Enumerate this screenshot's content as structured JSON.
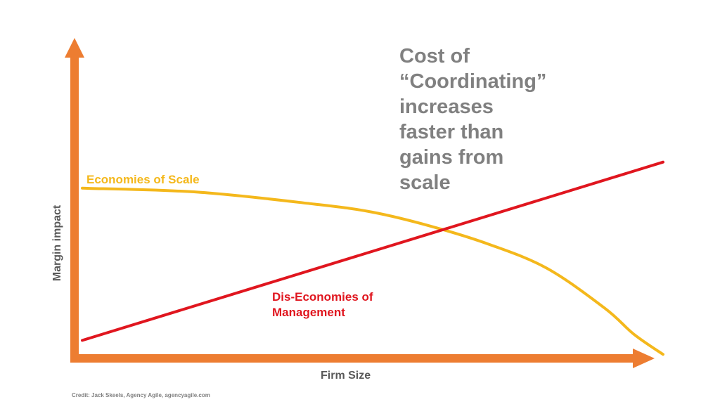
{
  "chart_data": {
    "type": "line",
    "xlabel": "Firm Size",
    "ylabel": "Margin impact",
    "xlim": [
      0,
      100
    ],
    "ylim": [
      0,
      100
    ],
    "grid": false,
    "annotation": [
      "Cost of",
      "“Coordinating”",
      "increases",
      "faster than",
      "gains from",
      "scale"
    ],
    "series": [
      {
        "name": "Economies of Scale",
        "color": "#f4b81c",
        "x": [
          0,
          20,
          40,
          50,
          60,
          70,
          80,
          90,
          95,
          100
        ],
        "values": [
          85,
          83,
          77,
          73,
          66,
          57,
          45,
          25,
          12,
          2
        ]
      },
      {
        "name": "Dis-Economies of Management",
        "label_lines": [
          "Dis-Economies of",
          "Management"
        ],
        "color": "#e0161f",
        "x": [
          0,
          100
        ],
        "values": [
          9,
          98
        ]
      }
    ],
    "colors": {
      "axis": "#ed7d31",
      "annotation": "#808080",
      "axis_label": "#595959"
    }
  },
  "credit": "Credit: Jack Skeels, Agency Agile, agencyagile.com"
}
